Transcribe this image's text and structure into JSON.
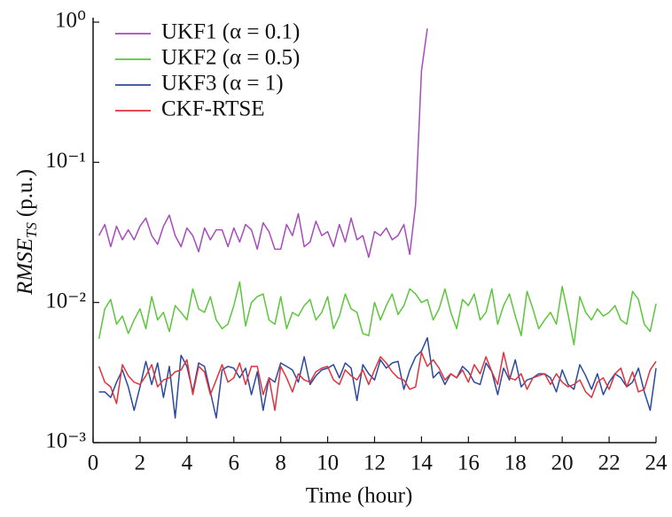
{
  "chart_data": {
    "type": "line",
    "x_label": "Time (hour)",
    "y_label": {
      "main": "RMSE",
      "sub": "TS",
      "unit": "(p.u.)"
    },
    "log_y": true,
    "legend": "upper left",
    "xlim": [
      0,
      24
    ],
    "xticks": [
      0,
      2,
      4,
      6,
      8,
      10,
      12,
      14,
      16,
      18,
      20,
      22,
      24
    ],
    "ylim": [
      0.001,
      1
    ],
    "yticks": [
      {
        "value": 0.001,
        "label": "10⁻³"
      },
      {
        "value": 0.01,
        "label": "10⁻²"
      },
      {
        "value": 0.1,
        "label": "10⁻¹"
      },
      {
        "value": 1,
        "label": "10⁰"
      }
    ],
    "x": [
      0.25,
      0.5,
      0.75,
      1,
      1.25,
      1.5,
      1.75,
      2,
      2.25,
      2.5,
      2.75,
      3,
      3.25,
      3.5,
      3.75,
      4,
      4.25,
      4.5,
      4.75,
      5,
      5.25,
      5.5,
      5.75,
      6,
      6.25,
      6.5,
      6.75,
      7,
      7.25,
      7.5,
      7.75,
      8,
      8.25,
      8.5,
      8.75,
      9,
      9.25,
      9.5,
      9.75,
      10,
      10.25,
      10.5,
      10.75,
      11,
      11.25,
      11.5,
      11.75,
      12,
      12.25,
      12.5,
      12.75,
      13,
      13.25,
      13.5,
      13.75,
      14,
      14.25,
      14.5,
      14.75,
      15,
      15.25,
      15.5,
      15.75,
      16,
      16.25,
      16.5,
      16.75,
      17,
      17.25,
      17.5,
      17.75,
      18,
      18.25,
      18.5,
      18.75,
      19,
      19.25,
      19.5,
      19.75,
      20,
      20.25,
      20.5,
      20.75,
      21,
      21.25,
      21.5,
      21.75,
      22,
      22.25,
      22.5,
      22.75,
      23,
      23.25,
      23.5,
      23.75,
      24
    ],
    "series": [
      {
        "name": "UKF1 (α = 0.1)",
        "color": "#a64cbc",
        "values": [
          0.03,
          0.036,
          0.025,
          0.035,
          0.028,
          0.033,
          0.028,
          0.035,
          0.04,
          0.03,
          0.026,
          0.035,
          0.042,
          0.03,
          0.025,
          0.034,
          0.03,
          0.023,
          0.034,
          0.028,
          0.033,
          0.033,
          0.025,
          0.034,
          0.027,
          0.036,
          0.033,
          0.024,
          0.037,
          0.032,
          0.024,
          0.024,
          0.036,
          0.03,
          0.043,
          0.025,
          0.027,
          0.038,
          0.03,
          0.032,
          0.025,
          0.036,
          0.027,
          0.04,
          0.028,
          0.03,
          0.021,
          0.032,
          0.03,
          0.034,
          0.028,
          0.03,
          0.036,
          0.022,
          0.05,
          0.45,
          0.9,
          null,
          null,
          null,
          null,
          null,
          null,
          null,
          null,
          null,
          null,
          null,
          null,
          null,
          null,
          null,
          null,
          null,
          null,
          null,
          null,
          null,
          null,
          null,
          null,
          null,
          null,
          null,
          null,
          null,
          null,
          null,
          null,
          null,
          null,
          null,
          null,
          null,
          null,
          null
        ]
      },
      {
        "name": "UKF2 (α = 0.5)",
        "color": "#5cc63c",
        "values": [
          0.0055,
          0.009,
          0.0105,
          0.007,
          0.008,
          0.006,
          0.0075,
          0.009,
          0.0065,
          0.011,
          0.0075,
          0.0085,
          0.0062,
          0.0095,
          0.0085,
          0.0075,
          0.0125,
          0.009,
          0.0085,
          0.011,
          0.0075,
          0.0065,
          0.007,
          0.0095,
          0.014,
          0.0068,
          0.01,
          0.011,
          0.0115,
          0.0075,
          0.007,
          0.011,
          0.0065,
          0.0085,
          0.008,
          0.0095,
          0.0105,
          0.0075,
          0.0085,
          0.011,
          0.0065,
          0.008,
          0.0115,
          0.009,
          0.0085,
          0.006,
          0.0058,
          0.01,
          0.0075,
          0.0095,
          0.0115,
          0.0082,
          0.0095,
          0.0125,
          0.0115,
          0.01,
          0.0105,
          0.0075,
          0.009,
          0.0125,
          0.0085,
          0.0065,
          0.0105,
          0.0095,
          0.0115,
          0.0075,
          0.0085,
          0.0125,
          0.007,
          0.0095,
          0.0115,
          0.008,
          0.0058,
          0.012,
          0.009,
          0.0065,
          0.0075,
          0.0085,
          0.007,
          0.013,
          0.0082,
          0.005,
          0.011,
          0.0085,
          0.0075,
          0.009,
          0.008,
          0.0085,
          0.0095,
          0.0075,
          0.007,
          0.012,
          0.0105,
          0.007,
          0.0062,
          0.0098
        ]
      },
      {
        "name": "UKF3 (α = 1)",
        "color": "#2b4a9e",
        "values": [
          0.0023,
          0.0023,
          0.0021,
          0.0027,
          0.0033,
          0.0025,
          0.0017,
          0.0025,
          0.0038,
          0.0026,
          0.0037,
          0.0021,
          0.0035,
          0.0015,
          0.0042,
          0.0035,
          0.0023,
          0.0037,
          0.0035,
          0.0023,
          0.0015,
          0.0033,
          0.0035,
          0.0034,
          0.0029,
          0.0034,
          0.0022,
          0.0032,
          0.0017,
          0.0029,
          0.0027,
          0.0037,
          0.0035,
          0.0033,
          0.0027,
          0.0041,
          0.0026,
          0.003,
          0.0033,
          0.0034,
          0.0036,
          0.0029,
          0.0037,
          0.0034,
          0.002,
          0.0036,
          0.0031,
          0.0028,
          0.0039,
          0.0034,
          0.0037,
          0.0038,
          0.0024,
          0.0033,
          0.0041,
          0.0045,
          0.0056,
          0.0029,
          0.0032,
          0.0026,
          0.0031,
          0.0029,
          0.0035,
          0.0032,
          0.0027,
          0.0026,
          0.0037,
          0.0032,
          0.0022,
          0.0034,
          0.0028,
          0.0039,
          0.0025,
          0.0028,
          0.0029,
          0.0031,
          0.0031,
          0.0029,
          0.0023,
          0.0033,
          0.0026,
          0.0024,
          0.0036,
          0.003,
          0.0024,
          0.0031,
          0.0022,
          0.0027,
          0.0031,
          0.0029,
          0.0025,
          0.0027,
          0.0034,
          0.0023,
          0.0017,
          0.0034
        ]
      },
      {
        "name": "CKF-RTSE",
        "color": "#e0323c",
        "values": [
          0.0035,
          0.0027,
          0.0025,
          0.0019,
          0.0036,
          0.003,
          0.0027,
          0.0026,
          0.003,
          0.0036,
          0.0025,
          0.0028,
          0.0029,
          0.0032,
          0.0033,
          0.0039,
          0.0022,
          0.0035,
          0.0032,
          0.0022,
          0.0028,
          0.0036,
          0.0027,
          0.0029,
          0.0037,
          0.0026,
          0.0035,
          0.0035,
          0.0022,
          0.0029,
          0.0017,
          0.0035,
          0.0029,
          0.0023,
          0.0031,
          0.0028,
          0.0027,
          0.0032,
          0.0034,
          0.0035,
          0.0028,
          0.0026,
          0.0033,
          0.003,
          0.0028,
          0.0033,
          0.0026,
          0.0033,
          0.0041,
          0.0037,
          0.0032,
          0.0029,
          0.0028,
          0.0024,
          0.0025,
          0.0044,
          0.0035,
          0.0039,
          0.0034,
          0.0028,
          0.0031,
          0.0029,
          0.0033,
          0.0027,
          0.0036,
          0.0031,
          0.0041,
          0.0032,
          0.0026,
          0.0044,
          0.0029,
          0.0028,
          0.0031,
          0.0024,
          0.0029,
          0.003,
          0.0031,
          0.0026,
          0.0031,
          0.0027,
          0.0025,
          0.0026,
          0.0028,
          0.0023,
          0.0021,
          0.0027,
          0.0029,
          0.0024,
          0.0031,
          0.0034,
          0.0025,
          0.0032,
          0.0023,
          0.0024,
          0.0033,
          0.0038
        ]
      }
    ]
  }
}
